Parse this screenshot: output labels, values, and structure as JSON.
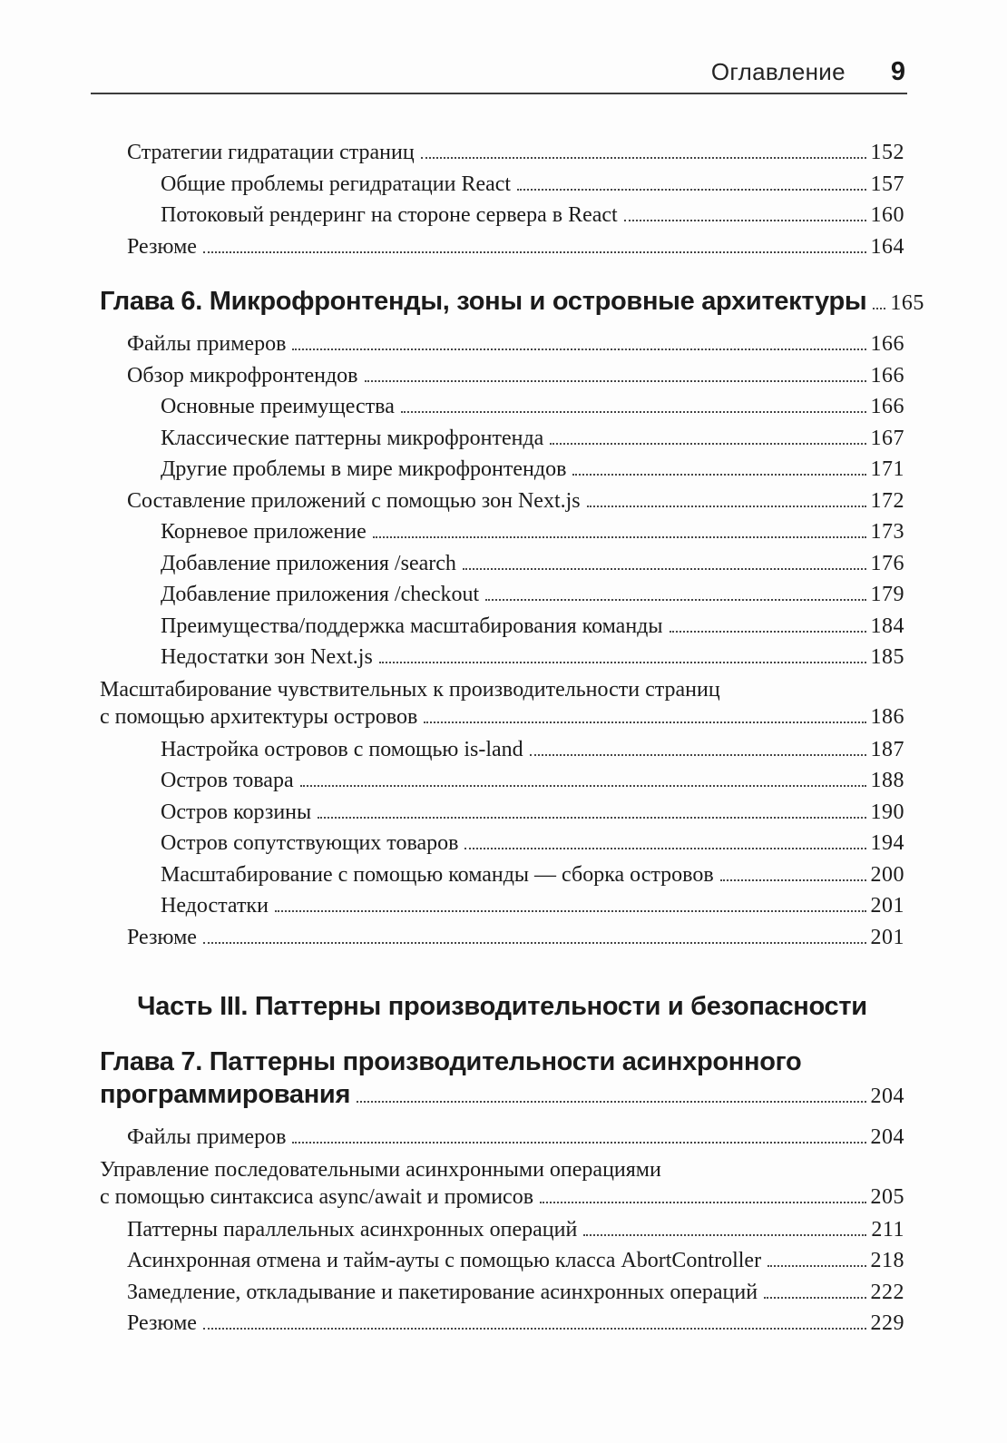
{
  "colors": {
    "ink": "#1b1b1b",
    "background": "#fdfdfd"
  },
  "header": {
    "title": "Оглавление",
    "page_number": "9"
  },
  "toc": [
    {
      "level": 1,
      "lines": [
        "Стратегии гидратации страниц"
      ],
      "page": "152"
    },
    {
      "level": 2,
      "lines": [
        "Общие проблемы регидратации React"
      ],
      "page": "157"
    },
    {
      "level": 2,
      "lines": [
        "Потоковый рендеринг на стороне сервера в React"
      ],
      "page": "160"
    },
    {
      "level": 1,
      "lines": [
        "Резюме"
      ],
      "page": "164"
    },
    {
      "level": "chapter",
      "lines": [
        "Глава 6. Микрофронтенды, зоны и островные архитектуры"
      ],
      "page": "165"
    },
    {
      "level": 1,
      "lines": [
        "Файлы примеров"
      ],
      "page": "166"
    },
    {
      "level": 1,
      "lines": [
        "Обзор микрофронтендов"
      ],
      "page": "166"
    },
    {
      "level": 2,
      "lines": [
        "Основные преимущества"
      ],
      "page": "166"
    },
    {
      "level": 2,
      "lines": [
        "Классические паттерны микрофронтенда"
      ],
      "page": "167"
    },
    {
      "level": 2,
      "lines": [
        "Другие проблемы в мире микрофронтендов"
      ],
      "page": "171"
    },
    {
      "level": 1,
      "lines": [
        "Составление приложений с помощью зон Next.js"
      ],
      "page": "172"
    },
    {
      "level": 2,
      "lines": [
        "Корневое приложение"
      ],
      "page": "173"
    },
    {
      "level": 2,
      "lines": [
        "Добавление приложения /search"
      ],
      "page": "176"
    },
    {
      "level": 2,
      "lines": [
        "Добавление приложения /checkout"
      ],
      "page": "179"
    },
    {
      "level": 2,
      "lines": [
        "Преимущества/поддержка масштабирования команды"
      ],
      "page": "184"
    },
    {
      "level": 2,
      "lines": [
        "Недостатки зон Next.js"
      ],
      "page": "185"
    },
    {
      "level": 1,
      "lines": [
        "Масштабирование чувствительных к производительности страниц",
        "с помощью архитектуры островов"
      ],
      "page": "186"
    },
    {
      "level": 2,
      "lines": [
        "Настройка островов с помощью is-land"
      ],
      "page": "187"
    },
    {
      "level": 2,
      "lines": [
        "Остров товара"
      ],
      "page": "188"
    },
    {
      "level": 2,
      "lines": [
        "Остров корзины"
      ],
      "page": "190"
    },
    {
      "level": 2,
      "lines": [
        "Остров сопутствующих товаров"
      ],
      "page": "194"
    },
    {
      "level": 2,
      "lines": [
        "Масштабирование с помощью команды — сборка островов"
      ],
      "page": "200"
    },
    {
      "level": 2,
      "lines": [
        "Недостатки"
      ],
      "page": "201"
    },
    {
      "level": 1,
      "lines": [
        "Резюме"
      ],
      "page": "201"
    },
    {
      "level": "part",
      "lines": [
        "Часть III. Паттерны производительности и безопасности"
      ],
      "page": null
    },
    {
      "level": "chapter",
      "lines": [
        "Глава 7. Паттерны производительности асинхронного",
        "программирования"
      ],
      "page": "204"
    },
    {
      "level": 1,
      "lines": [
        "Файлы примеров"
      ],
      "page": "204"
    },
    {
      "level": 1,
      "lines": [
        "Управление последовательными асинхронными операциями",
        "с помощью синтаксиса async/await и промисов"
      ],
      "page": "205"
    },
    {
      "level": 1,
      "lines": [
        "Паттерны параллельных асинхронных операций"
      ],
      "page": "211"
    },
    {
      "level": 1,
      "lines": [
        "Асинхронная отмена и тайм-ауты с помощью класса AbortController"
      ],
      "page": "218"
    },
    {
      "level": 1,
      "lines": [
        "Замедление, откладывание и пакетирование асинхронных операций"
      ],
      "page": "222"
    },
    {
      "level": 1,
      "lines": [
        "Резюме"
      ],
      "page": "229"
    }
  ]
}
